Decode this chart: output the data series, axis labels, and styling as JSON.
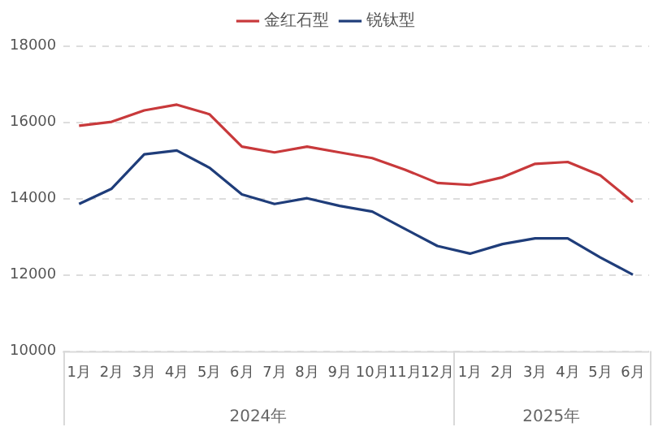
{
  "chart_data": {
    "type": "line",
    "categories": [
      "1月",
      "2月",
      "3月",
      "4月",
      "5月",
      "6月",
      "7月",
      "8月",
      "9月",
      "10月",
      "11月",
      "12月",
      "1月",
      "2月",
      "3月",
      "4月",
      "5月",
      "6月"
    ],
    "series": [
      {
        "name": "金红石型",
        "color": "#c8393b",
        "values": [
          15900,
          16000,
          16300,
          16450,
          16200,
          15350,
          15200,
          15350,
          15200,
          15050,
          14750,
          14400,
          14350,
          14550,
          14900,
          14950,
          14600,
          13900
        ]
      },
      {
        "name": "锐钛型",
        "color": "#1f3d7a",
        "values": [
          13850,
          14250,
          15150,
          15250,
          14800,
          14100,
          13850,
          14000,
          13800,
          13650,
          13200,
          12750,
          12550,
          12800,
          12950,
          12950,
          12450,
          12000
        ]
      }
    ],
    "annotations": [
      "2024年",
      "2025年"
    ],
    "ylim": [
      10000,
      18000
    ],
    "yticks": [
      10000,
      12000,
      14000,
      16000,
      18000
    ],
    "grid": "y",
    "legend": "top",
    "marker": "none",
    "line_style": "solid"
  }
}
